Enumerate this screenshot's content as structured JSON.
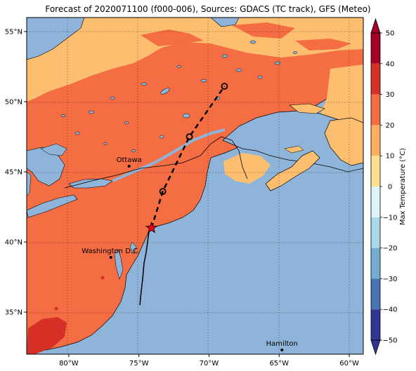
{
  "title": "Forecast of 2020071100 (f000-006), Sources: GDACS (TC track), GFS (Meteo)",
  "map": {
    "lon_range": [
      -83,
      -59
    ],
    "lat_range": [
      32,
      56
    ],
    "lon_ticks": [
      {
        "value": -80,
        "label": "80°W"
      },
      {
        "value": -75,
        "label": "75°W"
      },
      {
        "value": -70,
        "label": "70°W"
      },
      {
        "value": -65,
        "label": "65°W"
      },
      {
        "value": -60,
        "label": "60°W"
      }
    ],
    "lat_ticks": [
      {
        "value": 55,
        "label": "55°N"
      },
      {
        "value": 50,
        "label": "50°N"
      },
      {
        "value": 45,
        "label": "45°N"
      },
      {
        "value": 40,
        "label": "40°N"
      },
      {
        "value": 35,
        "label": "35°N"
      }
    ],
    "cities": [
      {
        "name": "Ottawa",
        "lon": -75.7,
        "lat": 45.4
      },
      {
        "name": "Washington D.C.",
        "lon": -77.0,
        "lat": 38.9
      },
      {
        "name": "Hamilton",
        "lon": -64.8,
        "lat": 32.3
      }
    ],
    "track": [
      {
        "lon": -74.1,
        "lat": 41.0,
        "marker": "star"
      },
      {
        "lon": -73.3,
        "lat": 43.6,
        "marker": "circle"
      },
      {
        "lon": -71.4,
        "lat": 47.5,
        "marker": "circle"
      },
      {
        "lon": -68.9,
        "lat": 51.1,
        "marker": "circle"
      }
    ]
  },
  "colorbar": {
    "label": "Max Temperature (°C)",
    "ticks": [
      "50",
      "40",
      "30",
      "20",
      "10",
      "0",
      "−10",
      "−20",
      "−30",
      "−40",
      "−50"
    ],
    "colors": [
      "#a50026",
      "#d73027",
      "#f46d43",
      "#fdae61",
      "#fee090",
      "#ffffbf",
      "#e0f3f8",
      "#abd9e9",
      "#74add1",
      "#4575b4",
      "#313695"
    ],
    "bands": [
      {
        "from": 40,
        "to": 50,
        "color": "#a50026"
      },
      {
        "from": 30,
        "to": 40,
        "color": "#d73027"
      },
      {
        "from": 20,
        "to": 30,
        "color": "#f46d43"
      },
      {
        "from": 10,
        "to": 20,
        "color": "#fdae61"
      },
      {
        "from": 0,
        "to": 10,
        "color": "#fee090"
      },
      {
        "from": -10,
        "to": 0,
        "color": "#e0f3f8"
      },
      {
        "from": -20,
        "to": -10,
        "color": "#abd9e9"
      },
      {
        "from": -30,
        "to": -20,
        "color": "#74add1"
      },
      {
        "from": -40,
        "to": -30,
        "color": "#4575b4"
      },
      {
        "from": -50,
        "to": -40,
        "color": "#313695"
      }
    ]
  },
  "ocean_color": "#8fb4d9",
  "land_warm_color": "#f46d43",
  "land_mild_color": "#fdbf6f",
  "land_hot_color": "#d73027"
}
